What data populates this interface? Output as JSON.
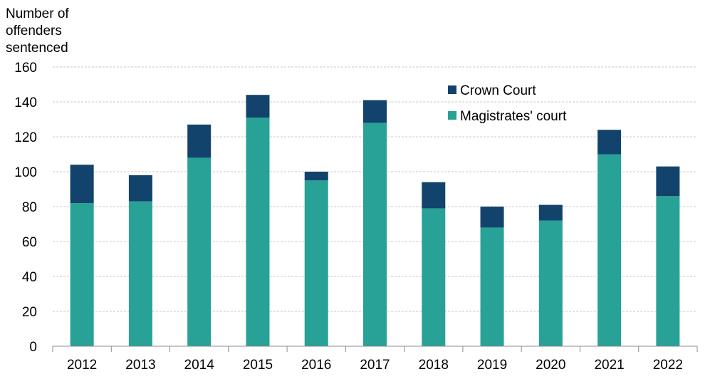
{
  "chart_data": {
    "type": "bar",
    "stacked": true,
    "ylabel_lines": [
      "Number of",
      "offenders",
      "sentenced"
    ],
    "xlabel": "",
    "categories": [
      "2012",
      "2013",
      "2014",
      "2015",
      "2016",
      "2017",
      "2018",
      "2019",
      "2020",
      "2021",
      "2022"
    ],
    "series": [
      {
        "name": "Magistrates' court",
        "color": "#28a197",
        "values": [
          82,
          83,
          108,
          131,
          95,
          128,
          79,
          68,
          72,
          110,
          86
        ]
      },
      {
        "name": "Crown Court",
        "color": "#12436d",
        "values": [
          22,
          15,
          19,
          13,
          5,
          13,
          15,
          12,
          9,
          14,
          17
        ]
      }
    ],
    "ylim": [
      0,
      160
    ],
    "yticks": [
      0,
      20,
      40,
      60,
      80,
      100,
      120,
      140,
      160
    ],
    "grid": true,
    "legend_position": "top-right",
    "legend_order": [
      "Crown Court",
      "Magistrates' court"
    ]
  }
}
